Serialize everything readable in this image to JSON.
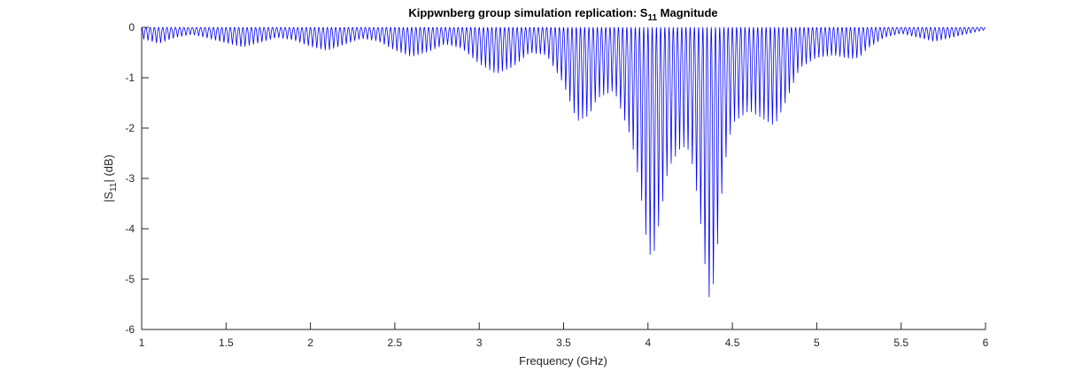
{
  "chart_data": {
    "type": "line",
    "title": {
      "main": "Kippwnberg group simulation replication: S",
      "sub": "11",
      "suffix": " Magnitude"
    },
    "xlabel": "Frequency (GHz)",
    "ylabel": {
      "pre": "|S",
      "sub": "11",
      "post": "| (dB)"
    },
    "xlim": [
      1,
      6
    ],
    "ylim": [
      -6,
      0
    ],
    "xticks": [
      1,
      1.5,
      2,
      2.5,
      3,
      3.5,
      4,
      4.5,
      5,
      5.5,
      6
    ],
    "xtick_labels": [
      "1",
      "1.5",
      "2",
      "2.5",
      "3",
      "3.5",
      "4",
      "4.5",
      "5",
      "5.5",
      "6"
    ],
    "yticks": [
      0,
      -1,
      -2,
      -3,
      -4,
      -5,
      -6
    ],
    "ytick_labels": [
      "0",
      "-1",
      "-2",
      "-3",
      "-4",
      "-5",
      "-6"
    ],
    "grid": false,
    "ripple_period_ghz": 0.025,
    "series": [
      {
        "color": "#0000ff",
        "envelope_upper": [
          [
            1.0,
            0.0
          ],
          [
            6.0,
            0.0
          ]
        ],
        "envelope_lower": [
          [
            1.0,
            -0.22
          ],
          [
            1.1,
            -0.32
          ],
          [
            1.2,
            -0.2
          ],
          [
            1.3,
            -0.14
          ],
          [
            1.4,
            -0.22
          ],
          [
            1.5,
            -0.31
          ],
          [
            1.6,
            -0.39
          ],
          [
            1.7,
            -0.3
          ],
          [
            1.8,
            -0.2
          ],
          [
            1.9,
            -0.25
          ],
          [
            2.0,
            -0.38
          ],
          [
            2.1,
            -0.46
          ],
          [
            2.2,
            -0.34
          ],
          [
            2.3,
            -0.22
          ],
          [
            2.4,
            -0.27
          ],
          [
            2.5,
            -0.45
          ],
          [
            2.6,
            -0.58
          ],
          [
            2.7,
            -0.48
          ],
          [
            2.8,
            -0.33
          ],
          [
            2.9,
            -0.42
          ],
          [
            3.0,
            -0.72
          ],
          [
            3.1,
            -0.92
          ],
          [
            3.2,
            -0.78
          ],
          [
            3.3,
            -0.5
          ],
          [
            3.4,
            -0.55
          ],
          [
            3.5,
            -1.12
          ],
          [
            3.58,
            -1.86
          ],
          [
            3.65,
            -1.75
          ],
          [
            3.7,
            -1.4
          ],
          [
            3.8,
            -1.25
          ],
          [
            3.9,
            -2.2
          ],
          [
            3.95,
            -3.1
          ],
          [
            4.0,
            -4.45
          ],
          [
            4.03,
            -4.58
          ],
          [
            4.07,
            -3.8
          ],
          [
            4.12,
            -2.8
          ],
          [
            4.2,
            -2.35
          ],
          [
            4.25,
            -2.45
          ],
          [
            4.3,
            -3.5
          ],
          [
            4.35,
            -5.1
          ],
          [
            4.37,
            -5.5
          ],
          [
            4.4,
            -4.8
          ],
          [
            4.45,
            -2.8
          ],
          [
            4.5,
            -1.9
          ],
          [
            4.6,
            -1.65
          ],
          [
            4.7,
            -1.85
          ],
          [
            4.75,
            -1.95
          ],
          [
            4.8,
            -1.6
          ],
          [
            4.9,
            -0.8
          ],
          [
            5.0,
            -0.6
          ],
          [
            5.1,
            -0.55
          ],
          [
            5.2,
            -0.62
          ],
          [
            5.25,
            -0.6
          ],
          [
            5.3,
            -0.42
          ],
          [
            5.4,
            -0.2
          ],
          [
            5.5,
            -0.12
          ],
          [
            5.6,
            -0.2
          ],
          [
            5.7,
            -0.28
          ],
          [
            5.8,
            -0.2
          ],
          [
            5.9,
            -0.12
          ],
          [
            6.0,
            -0.05
          ]
        ]
      }
    ]
  }
}
